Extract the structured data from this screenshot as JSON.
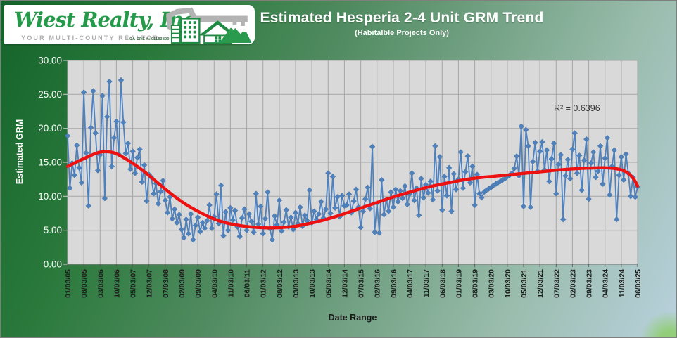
{
  "logo": {
    "company": "Wiest Realty, Inc",
    "tagline": "YOUR MULTI-COUNTY REALTOR",
    "license": "CA DRE #: 01183800",
    "brand_green": "#259a4b",
    "key_gray": "#b3b3b3"
  },
  "header": {
    "title": "Estimated Hesperia 2-4 Unit GRM Trend",
    "subtitle": "(Habitalble Projects Only)"
  },
  "chart_data": {
    "type": "line",
    "title": "Estimated Hesperia 2-4 Unit GRM Trend",
    "xlabel": "Date Range",
    "ylabel": "Estimated GRM",
    "ylim": [
      0,
      30
    ],
    "y_ticks": [
      0,
      5,
      10,
      15,
      20,
      25,
      30
    ],
    "y_tick_format": "0.00",
    "grid": true,
    "annotation": "R² = 0.6396",
    "plot_bg": "#d9d9d9",
    "gridline_color": "#a6a6a6",
    "x_tick_labels": [
      "01/03/05",
      "08/03/05",
      "03/03/06",
      "10/03/06",
      "05/03/07",
      "12/03/07",
      "07/03/08",
      "02/03/09",
      "09/03/09",
      "04/03/10",
      "11/03/10",
      "06/03/11",
      "01/03/12",
      "08/03/12",
      "03/03/13",
      "10/03/13",
      "05/03/14",
      "12/03/14",
      "07/03/15",
      "02/03/16",
      "09/03/16",
      "04/03/17",
      "11/03/17",
      "06/03/18",
      "01/03/19",
      "08/03/19",
      "03/03/20",
      "10/03/20",
      "05/03/21",
      "12/03/21",
      "07/03/22",
      "02/03/23",
      "09/03/23",
      "04/03/24",
      "11/03/24",
      "06/03/25"
    ],
    "x_tick_interval_months": 7,
    "frequency": "monthly",
    "start_label": "01/03/05",
    "series": [
      {
        "name": "Estimated GRM",
        "style": "line-with-diamond-markers",
        "color": "#4f81bd",
        "values": [
          18.9,
          11.2,
          14.9,
          13.1,
          17.5,
          14.2,
          12.0,
          25.3,
          16.4,
          8.6,
          20.1,
          25.5,
          19.3,
          13.8,
          16.1,
          24.8,
          9.7,
          21.7,
          26.9,
          14.4,
          18.6,
          21.0,
          16.2,
          27.1,
          20.9,
          16.3,
          17.8,
          14.0,
          16.6,
          13.4,
          15.7,
          16.9,
          12.1,
          14.6,
          9.3,
          13.2,
          12.8,
          10.4,
          11.9,
          8.9,
          10.7,
          12.3,
          9.4,
          7.6,
          9.9,
          6.7,
          8.1,
          6.1,
          7.3,
          5.1,
          3.9,
          6.6,
          4.5,
          7.4,
          3.6,
          5.7,
          6.9,
          4.8,
          6.1,
          5.3,
          6.4,
          8.7,
          5.3,
          7.0,
          10.3,
          6.0,
          11.6,
          4.2,
          7.7,
          5.0,
          8.3,
          6.5,
          7.9,
          5.5,
          4.1,
          6.8,
          8.1,
          5.0,
          7.4,
          6.3,
          4.7,
          10.4,
          5.9,
          8.5,
          4.5,
          6.7,
          10.6,
          5.2,
          3.6,
          7.1,
          5.8,
          9.4,
          4.9,
          6.2,
          8.0,
          5.5,
          6.9,
          5.1,
          7.6,
          6.0,
          8.4,
          5.6,
          7.2,
          6.4,
          10.9,
          6.1,
          7.8,
          6.6,
          7.4,
          9.2,
          6.8,
          8.1,
          13.4,
          7.5,
          12.9,
          8.3,
          9.9,
          7.0,
          10.1,
          8.6,
          8.7,
          10.3,
          7.6,
          9.3,
          11.0,
          8.4,
          5.4,
          7.8,
          9.6,
          11.3,
          8.2,
          17.3,
          4.7,
          9.0,
          4.6,
          12.4,
          7.3,
          9.5,
          7.8,
          10.6,
          8.4,
          11.0,
          9.2,
          10.8,
          9.7,
          11.5,
          8.8,
          10.3,
          13.4,
          9.4,
          11.2,
          7.2,
          12.6,
          9.8,
          11.7,
          10.5,
          12.2,
          9.5,
          17.4,
          10.8,
          15.8,
          8.0,
          12.9,
          10.1,
          14.2,
          7.8,
          13.3,
          11.0,
          12.5,
          16.5,
          11.2,
          13.6,
          15.9,
          12.0,
          14.4,
          8.7,
          13.2,
          10.4,
          9.8,
          10.6,
          10.9,
          11.1,
          11.3,
          11.6,
          11.8,
          12.0,
          12.2,
          12.4,
          12.6,
          12.9,
          13.1,
          13.4,
          14.1,
          15.9,
          13.0,
          20.3,
          8.5,
          19.8,
          17.4,
          8.4,
          15.1,
          17.9,
          13.7,
          16.6,
          18.0,
          13.9,
          16.8,
          12.2,
          15.5,
          17.8,
          10.4,
          14.7,
          16.1,
          6.6,
          13.0,
          15.4,
          12.6,
          16.9,
          19.3,
          13.4,
          16.0,
          10.9,
          15.3,
          18.4,
          9.6,
          14.9,
          16.5,
          12.8,
          13.7,
          17.4,
          11.8,
          15.6,
          18.6,
          10.2,
          14.4,
          16.8,
          6.6,
          13.1,
          15.8,
          12.4,
          16.2,
          13.4,
          10.0,
          12.8,
          9.9,
          11.4
        ]
      },
      {
        "name": "Polynomial trend (R² = 0.6396)",
        "style": "smooth-trend-line",
        "color": "#ee1111",
        "anchors": [
          [
            0,
            14.4
          ],
          [
            8,
            15.7
          ],
          [
            14,
            16.5
          ],
          [
            20,
            16.4
          ],
          [
            26,
            15.3
          ],
          [
            32,
            13.9
          ],
          [
            38,
            12.2
          ],
          [
            44,
            10.5
          ],
          [
            50,
            9.0
          ],
          [
            56,
            7.8
          ],
          [
            62,
            6.8
          ],
          [
            68,
            6.1
          ],
          [
            74,
            5.7
          ],
          [
            80,
            5.45
          ],
          [
            86,
            5.35
          ],
          [
            92,
            5.4
          ],
          [
            98,
            5.6
          ],
          [
            104,
            6.0
          ],
          [
            110,
            6.5
          ],
          [
            116,
            7.1
          ],
          [
            122,
            7.8
          ],
          [
            128,
            8.5
          ],
          [
            134,
            9.2
          ],
          [
            140,
            9.9
          ],
          [
            146,
            10.5
          ],
          [
            152,
            11.1
          ],
          [
            158,
            11.6
          ],
          [
            164,
            12.0
          ],
          [
            170,
            12.4
          ],
          [
            176,
            12.7
          ],
          [
            182,
            12.9
          ],
          [
            188,
            13.1
          ],
          [
            194,
            13.3
          ],
          [
            200,
            13.5
          ],
          [
            206,
            13.7
          ],
          [
            212,
            13.9
          ],
          [
            218,
            14.05
          ],
          [
            224,
            14.15
          ],
          [
            230,
            14.2
          ],
          [
            236,
            14.05
          ],
          [
            240,
            13.6
          ],
          [
            243,
            12.7
          ],
          [
            245,
            11.5
          ]
        ]
      }
    ]
  }
}
